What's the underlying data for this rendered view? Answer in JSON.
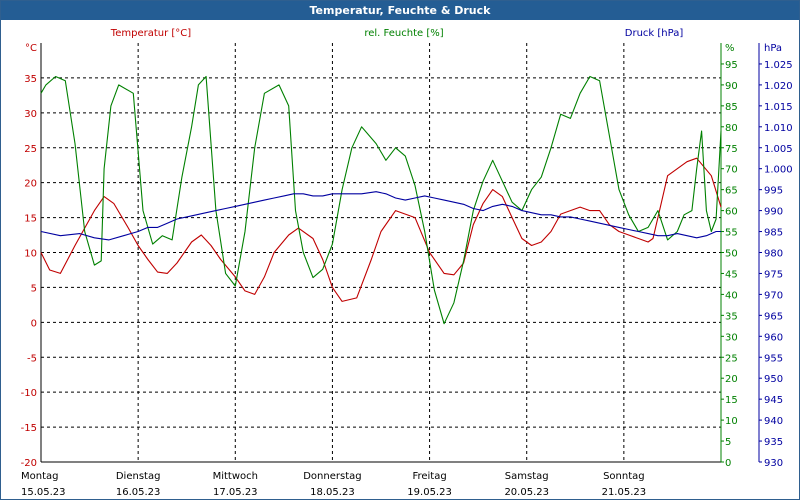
{
  "window": {
    "title": "Temperatur, Feuchte & Druck"
  },
  "colors": {
    "temperature": "#c00000",
    "humidity": "#008000",
    "pressure": "#0000a0",
    "titlebar": "#245d94",
    "axis": "#000000"
  },
  "chart_data": {
    "type": "line",
    "title": "Temperatur, Feuchte & Druck",
    "grid": true,
    "x_range": [
      0,
      7
    ],
    "x_ticks": [
      {
        "day": "Montag",
        "date": "15.05.23"
      },
      {
        "day": "Dienstag",
        "date": "16.05.23"
      },
      {
        "day": "Mittwoch",
        "date": "17.05.23"
      },
      {
        "day": "Donnerstag",
        "date": "18.05.23"
      },
      {
        "day": "Freitag",
        "date": "19.05.23"
      },
      {
        "day": "Samstag",
        "date": "20.05.23"
      },
      {
        "day": "Sonntag",
        "date": "21.05.23"
      }
    ],
    "axes": {
      "temperature": {
        "label": "Temperatur [°C]",
        "unit": "°C",
        "range": [
          -20,
          40
        ],
        "ticks": [
          "-20",
          "-15",
          "-10",
          "-5",
          "0",
          "5",
          "10",
          "15",
          "20",
          "25",
          "30",
          "35"
        ]
      },
      "humidity": {
        "label": "rel. Feuchte [%]",
        "unit": "%",
        "range": [
          0,
          100
        ],
        "ticks": [
          "0",
          "5",
          "10",
          "15",
          "20",
          "25",
          "30",
          "35",
          "40",
          "45",
          "50",
          "55",
          "60",
          "65",
          "70",
          "75",
          "80",
          "85",
          "90",
          "95"
        ]
      },
      "pressure": {
        "label": "Druck [hPa]",
        "unit": "hPa",
        "range": [
          930,
          1030
        ],
        "ticks": [
          "930",
          "935",
          "940",
          "945",
          "950",
          "955",
          "960",
          "965",
          "970",
          "975",
          "980",
          "985",
          "990",
          "995",
          "1.000",
          "1.005",
          "1.010",
          "1.015",
          "1.020",
          "1.025"
        ]
      }
    },
    "series": [
      {
        "name": "Temperatur [°C]",
        "axis": "temperature",
        "color": "#c00000",
        "x": [
          0.0,
          0.09,
          0.2,
          0.35,
          0.55,
          0.65,
          0.75,
          0.9,
          1.0,
          1.1,
          1.2,
          1.3,
          1.4,
          1.55,
          1.65,
          1.75,
          1.85,
          2.0,
          2.1,
          2.2,
          2.3,
          2.4,
          2.55,
          2.65,
          2.8,
          2.9,
          3.0,
          3.1,
          3.25,
          3.4,
          3.5,
          3.65,
          3.85,
          4.0,
          4.15,
          4.25,
          4.35,
          4.45,
          4.55,
          4.65,
          4.75,
          4.85,
          4.95,
          5.05,
          5.15,
          5.25,
          5.35,
          5.45,
          5.55,
          5.65,
          5.75,
          5.85,
          5.95,
          6.05,
          6.15,
          6.25,
          6.3,
          6.35,
          6.45,
          6.55,
          6.65,
          6.75,
          6.9,
          7.0
        ],
        "values": [
          10.0,
          7.5,
          7.0,
          11.0,
          16.0,
          18.0,
          17.0,
          13.5,
          11.0,
          9.0,
          7.2,
          7.0,
          8.5,
          11.5,
          12.5,
          11.0,
          9.0,
          6.5,
          4.5,
          4.0,
          6.5,
          10.0,
          12.5,
          13.5,
          12.0,
          9.0,
          5.0,
          3.0,
          3.5,
          9.0,
          13.0,
          16.0,
          15.0,
          10.0,
          7.0,
          6.8,
          8.5,
          14.0,
          17.0,
          19.0,
          18.0,
          15.0,
          12.0,
          11.0,
          11.5,
          13.0,
          15.5,
          16.0,
          16.5,
          16.0,
          16.0,
          14.0,
          13.0,
          12.5,
          12.0,
          11.5,
          12.0,
          15.0,
          21.0,
          22.0,
          23.0,
          23.5,
          21.0,
          16.5
        ]
      },
      {
        "name": "rel. Feuchte [%]",
        "axis": "humidity",
        "color": "#008000",
        "x": [
          0.0,
          0.05,
          0.15,
          0.25,
          0.35,
          0.45,
          0.55,
          0.62,
          0.65,
          0.72,
          0.8,
          0.95,
          1.05,
          1.15,
          1.25,
          1.35,
          1.45,
          1.55,
          1.62,
          1.7,
          1.8,
          1.9,
          2.0,
          2.1,
          2.2,
          2.3,
          2.45,
          2.55,
          2.62,
          2.7,
          2.8,
          2.9,
          3.0,
          3.1,
          3.2,
          3.3,
          3.45,
          3.55,
          3.65,
          3.75,
          3.85,
          3.95,
          4.05,
          4.15,
          4.25,
          4.35,
          4.45,
          4.55,
          4.65,
          4.75,
          4.85,
          4.95,
          5.05,
          5.15,
          5.25,
          5.35,
          5.45,
          5.55,
          5.65,
          5.75,
          5.85,
          5.95,
          6.05,
          6.15,
          6.25,
          6.35,
          6.45,
          6.55,
          6.62,
          6.7,
          6.75,
          6.8,
          6.85,
          6.9,
          6.95,
          7.0
        ],
        "values": [
          88.0,
          90.0,
          92.0,
          91.0,
          76.0,
          55.0,
          47.0,
          48.0,
          70.0,
          85.0,
          90.0,
          88.0,
          60.0,
          52.0,
          54.0,
          53.0,
          68.0,
          80.0,
          90.0,
          92.0,
          60.0,
          45.0,
          42.0,
          55.0,
          75.0,
          88.0,
          90.0,
          85.0,
          60.0,
          50.0,
          44.0,
          46.0,
          52.0,
          65.0,
          75.0,
          80.0,
          76.0,
          72.0,
          75.0,
          73.0,
          66.0,
          55.0,
          41.0,
          33.0,
          38.0,
          48.0,
          60.0,
          67.0,
          72.0,
          67.0,
          62.0,
          60.0,
          65.0,
          68.0,
          75.0,
          83.0,
          82.0,
          88.0,
          92.0,
          91.0,
          78.0,
          65.0,
          59.0,
          55.0,
          56.0,
          60.0,
          53.0,
          55.0,
          59.0,
          60.0,
          70.0,
          79.0,
          60.0,
          55.0,
          58.0,
          79.0
        ]
      },
      {
        "name": "Druck [hPa]",
        "axis": "pressure",
        "color": "#0000a0",
        "x": [
          0.0,
          0.2,
          0.4,
          0.55,
          0.7,
          0.85,
          1.0,
          1.1,
          1.2,
          1.3,
          1.4,
          1.5,
          1.6,
          1.7,
          1.8,
          1.9,
          2.0,
          2.1,
          2.2,
          2.3,
          2.4,
          2.5,
          2.6,
          2.7,
          2.8,
          2.9,
          3.0,
          3.15,
          3.3,
          3.45,
          3.55,
          3.65,
          3.75,
          3.85,
          3.95,
          4.05,
          4.15,
          4.25,
          4.35,
          4.45,
          4.55,
          4.65,
          4.75,
          4.85,
          4.95,
          5.05,
          5.15,
          5.25,
          5.35,
          5.45,
          5.55,
          5.65,
          5.75,
          5.85,
          5.95,
          6.05,
          6.15,
          6.25,
          6.35,
          6.45,
          6.55,
          6.65,
          6.75,
          6.85,
          6.95,
          7.0
        ],
        "values": [
          985.0,
          984.0,
          984.5,
          983.5,
          983.0,
          984.0,
          985.0,
          986.0,
          986.0,
          987.0,
          988.0,
          988.5,
          989.0,
          989.5,
          990.0,
          990.5,
          991.0,
          991.5,
          992.0,
          992.5,
          993.0,
          993.5,
          994.0,
          994.0,
          993.5,
          993.5,
          994.0,
          994.0,
          994.0,
          994.5,
          994.0,
          993.0,
          992.5,
          993.0,
          993.5,
          993.0,
          992.5,
          992.0,
          991.5,
          990.5,
          990.0,
          991.0,
          991.5,
          991.0,
          990.0,
          989.5,
          989.0,
          989.0,
          988.5,
          988.5,
          988.0,
          987.5,
          987.0,
          986.5,
          986.0,
          985.5,
          985.0,
          984.5,
          984.0,
          984.0,
          984.5,
          984.0,
          983.5,
          984.0,
          985.0,
          985.0
        ]
      }
    ]
  }
}
